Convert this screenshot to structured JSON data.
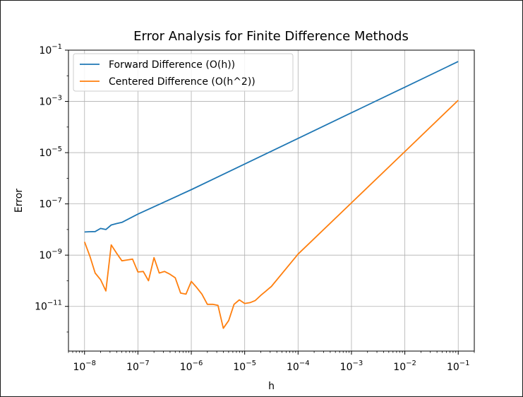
{
  "chart_data": {
    "type": "line",
    "title": "Error Analysis for Finite Difference Methods",
    "xlabel": "h",
    "ylabel": "Error",
    "xscale": "log",
    "yscale": "log",
    "xlim": [
      5e-09,
      0.2
    ],
    "ylim": [
      1.8e-13,
      0.1
    ],
    "grid": true,
    "legend_position": "top-left",
    "x_ticks": [
      {
        "base": "10",
        "exp": "−8",
        "value": 1e-08
      },
      {
        "base": "10",
        "exp": "−7",
        "value": 1e-07
      },
      {
        "base": "10",
        "exp": "−6",
        "value": 1e-06
      },
      {
        "base": "10",
        "exp": "−5",
        "value": 1e-05
      },
      {
        "base": "10",
        "exp": "−4",
        "value": 0.0001
      },
      {
        "base": "10",
        "exp": "−3",
        "value": 0.001
      },
      {
        "base": "10",
        "exp": "−2",
        "value": 0.01
      },
      {
        "base": "10",
        "exp": "−1",
        "value": 0.1
      }
    ],
    "y_ticks": [
      {
        "base": "10",
        "exp": "−1",
        "value": 0.1
      },
      {
        "base": "10",
        "exp": "−3",
        "value": 0.001
      },
      {
        "base": "10",
        "exp": "−5",
        "value": 1e-05
      },
      {
        "base": "10",
        "exp": "−7",
        "value": 1e-07
      },
      {
        "base": "10",
        "exp": "−9",
        "value": 1e-09
      },
      {
        "base": "10",
        "exp": "−11",
        "value": 1e-11
      }
    ],
    "series": [
      {
        "name": "Forward Difference (O(h))",
        "color": "#1f77b4",
        "x": [
          1e-08,
          1.26e-08,
          1.58e-08,
          2e-08,
          2.51e-08,
          3.16e-08,
          3.98e-08,
          5.01e-08,
          1e-07,
          1e-06,
          1e-05,
          0.0001,
          0.001,
          0.01,
          0.1
        ],
        "y": [
          8e-09,
          8.2e-09,
          8.3e-09,
          1.1e-08,
          1e-08,
          1.5e-08,
          1.7e-08,
          1.9e-08,
          4e-08,
          3.6e-07,
          3.6e-06,
          3.6e-05,
          0.00036,
          0.0036,
          0.036
        ]
      },
      {
        "name": "Centered Difference (O(h^2))",
        "color": "#ff7f0e",
        "x": [
          1e-08,
          1.26e-08,
          1.58e-08,
          2e-08,
          2.51e-08,
          3.16e-08,
          3.98e-08,
          5.01e-08,
          6.31e-08,
          7.94e-08,
          1e-07,
          1.26e-07,
          1.58e-07,
          2e-07,
          2.51e-07,
          3.16e-07,
          3.98e-07,
          5.01e-07,
          6.31e-07,
          7.94e-07,
          1e-06,
          1.26e-06,
          1.58e-06,
          2e-06,
          2.51e-06,
          3.16e-06,
          3.98e-06,
          5.01e-06,
          6.31e-06,
          7.94e-06,
          1e-05,
          1.26e-05,
          1.58e-05,
          2e-05,
          2.51e-05,
          3.16e-05,
          0.0001,
          0.001,
          0.01,
          0.1
        ],
        "y": [
          3.3e-09,
          9e-10,
          2e-10,
          1.1e-10,
          4e-11,
          2.5e-09,
          1.2e-09,
          6e-10,
          6.5e-10,
          7e-10,
          2.2e-10,
          2.3e-10,
          1e-10,
          8e-10,
          2e-10,
          2.3e-10,
          1.8e-10,
          1.3e-10,
          3.3e-11,
          3e-11,
          9.5e-11,
          5.5e-11,
          3e-11,
          1.2e-11,
          1.2e-11,
          1.1e-11,
          1.4e-12,
          2.8e-12,
          1.2e-11,
          1.8e-11,
          1.3e-11,
          1.4e-11,
          1.7e-11,
          2.7e-11,
          4e-11,
          6e-11,
          1.1e-09,
          1.1e-07,
          1.1e-05,
          0.0011
        ]
      }
    ]
  }
}
